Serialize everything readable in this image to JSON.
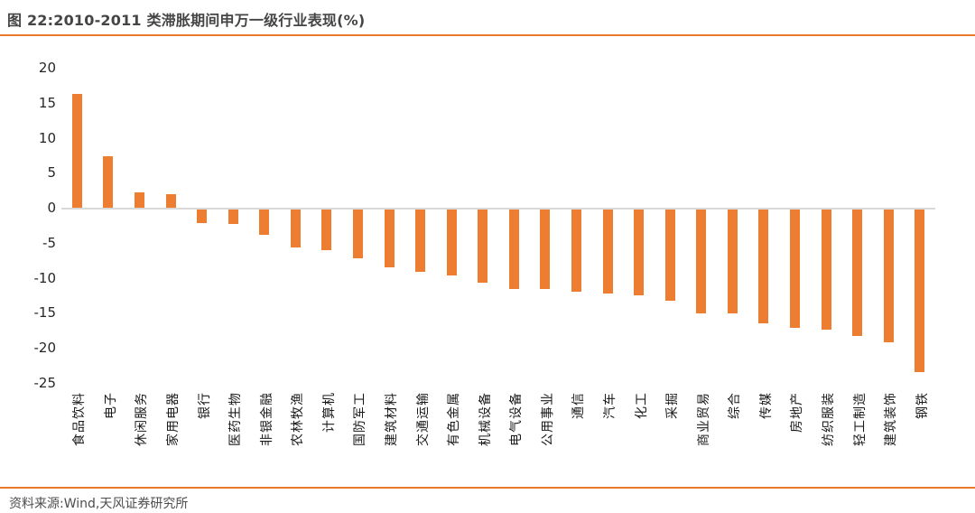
{
  "header": {
    "title": "图 22:2010-2011 类滞胀期间申万一级行业表现(%)"
  },
  "footer": {
    "source": "资料来源:Wind,天风证券研究所"
  },
  "colors": {
    "bar": "#ED7D31",
    "accent_rule": "#E8792A",
    "axis_line": "#D9D9D9",
    "title_text": "#454545",
    "tick_text": "#262626"
  },
  "chart_data": {
    "type": "bar",
    "title": "图 22:2010-2011 类滞胀期间申万一级行业表现(%)",
    "xlabel": "",
    "ylabel": "",
    "ylim": [
      -25,
      20
    ],
    "yticks": [
      20,
      15,
      10,
      5,
      0,
      -5,
      -10,
      -15,
      -20,
      -25
    ],
    "grid": false,
    "legend": "none",
    "bar_color": "#ED7D31",
    "categories": [
      "食品饮料",
      "电子",
      "休闲服务",
      "家用电器",
      "银行",
      "医药生物",
      "非银金融",
      "农林牧渔",
      "计算机",
      "国防军工",
      "建筑材料",
      "交通运输",
      "有色金属",
      "机械设备",
      "电气设备",
      "公用事业",
      "通信",
      "汽车",
      "化工",
      "采掘",
      "商业贸易",
      "综合",
      "传媒",
      "房地产",
      "纺织服装",
      "轻工制造",
      "建筑装饰",
      "钢铁"
    ],
    "values": [
      16.3,
      7.4,
      2.2,
      1.9,
      -1.9,
      -2.0,
      -3.6,
      -5.4,
      -5.8,
      -7.0,
      -8.2,
      -8.9,
      -9.4,
      -10.5,
      -11.3,
      -11.4,
      -11.7,
      -12.0,
      -12.3,
      -13.0,
      -14.8,
      -14.9,
      -16.2,
      -16.9,
      -17.1,
      -18.0,
      -19.0,
      -23.2
    ]
  }
}
